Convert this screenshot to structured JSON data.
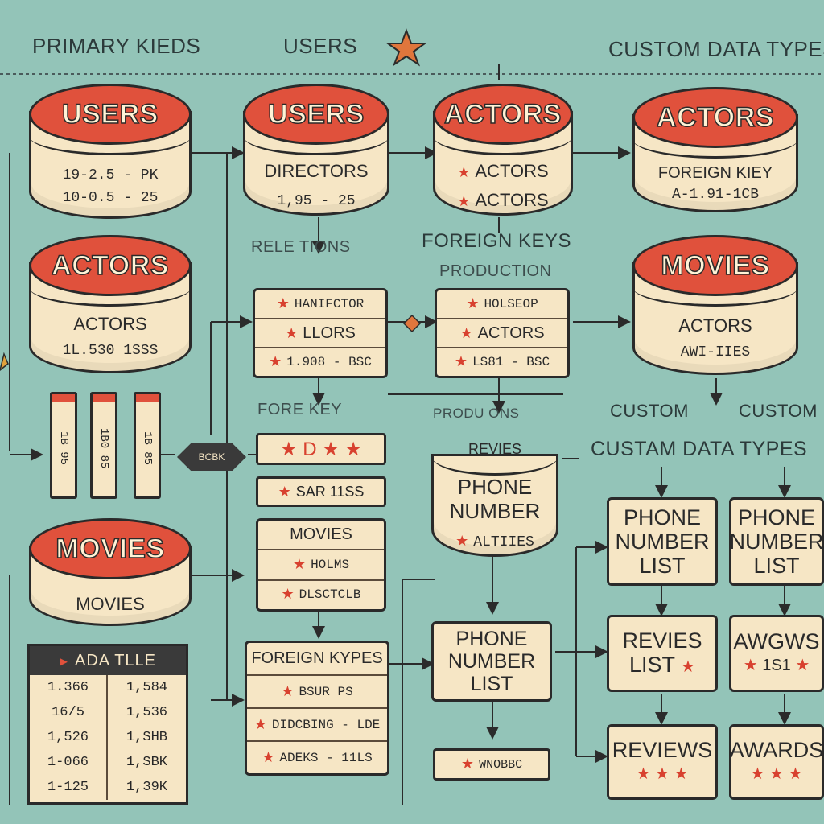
{
  "header": {
    "left_label": "PRIMARY KIEDS",
    "mid_label": "USERS",
    "right_label": "CUSTOM DATA TYPES"
  },
  "cylinders": {
    "users_left": {
      "title": "USERS",
      "row1": "19-2.5 - PK",
      "row2": "10-0.5 - 25"
    },
    "users_mid": {
      "title": "USERS",
      "row1": "DIRECTORS",
      "row2": "1,95 - 25"
    },
    "actors_mid": {
      "title": "ACTORS",
      "row1": "ACTORS",
      "row2": "ACTORS"
    },
    "actors_right": {
      "title": "ACTORS",
      "row1": "FOREIGN KIEY",
      "row2": "A-1.91-1CB"
    },
    "actors_left": {
      "title": "ACTORS",
      "row1": "ACTORS",
      "row2": "1L.530 1SSS"
    },
    "movies_right": {
      "title": "MOVIES",
      "row1": "ACTORS",
      "row2": "AWI-IIES"
    },
    "movies_left": {
      "title": "MOVIES",
      "row1": "MOVIES"
    }
  },
  "labels": {
    "relations": "RELE  TIONS",
    "foreign_keys": "FOREIGN KEYS",
    "production": "PRODUCTION",
    "fore_key": "FORE        KEY",
    "productions": "PRODU        ONS",
    "custom1": "CUSTOM",
    "custom2": "CUSTOM",
    "custam_data_types": "CUSTAM DATA TYPES",
    "foreign_kypes": "FOREIGN KYPES"
  },
  "boxes": {
    "mid_table": [
      "HANIFCTOR",
      "LLORS",
      "1.908 - BSC"
    ],
    "prod_table": [
      "HOLSEOP",
      "ACTORS",
      "LS81 - BSC"
    ],
    "stars_box": "★ D ★ ★",
    "sar_box": "SAR   11SS",
    "movies_table": [
      "MOVIES",
      "HOLMS",
      "DLSCTCLB"
    ],
    "reviews_cyl": {
      "title": "REVIES",
      "row1": "PHONE NUMBER",
      "row2": "ALTIIES"
    },
    "phone_list_mid": "PHONE NUMBER LIST",
    "foreign_kypes_rows": [
      "BSUR PS",
      "DIDCBING - LDE",
      "ADEKS - 11LS"
    ],
    "wnoebc": "WNOBBC"
  },
  "cards": {
    "phone1": "PHONE NUMBER LIST",
    "phone2": "PHONE NUMBER LIST",
    "revies_list": [
      "REVIES",
      "LIST"
    ],
    "awgws": [
      "AWGWS",
      "1S1"
    ],
    "reviews": "REVIEWS",
    "awards": "AWARDS"
  },
  "tall_cols": [
    "1B 95",
    "1B0 85",
    "1B 85"
  ],
  "data_table": {
    "title": "ADA  TLLE",
    "cells": [
      "1.366",
      "1,584",
      "16/5",
      "1,536",
      "1,526",
      "1,SHB",
      "1-066",
      "1,SBK",
      "1-125",
      "1,39K"
    ]
  },
  "chip": "BCBK",
  "colors": {
    "background": "#93c4b8",
    "cap": "#e0513c",
    "cream": "#f6e6c5",
    "ink": "#2a2a2a"
  }
}
